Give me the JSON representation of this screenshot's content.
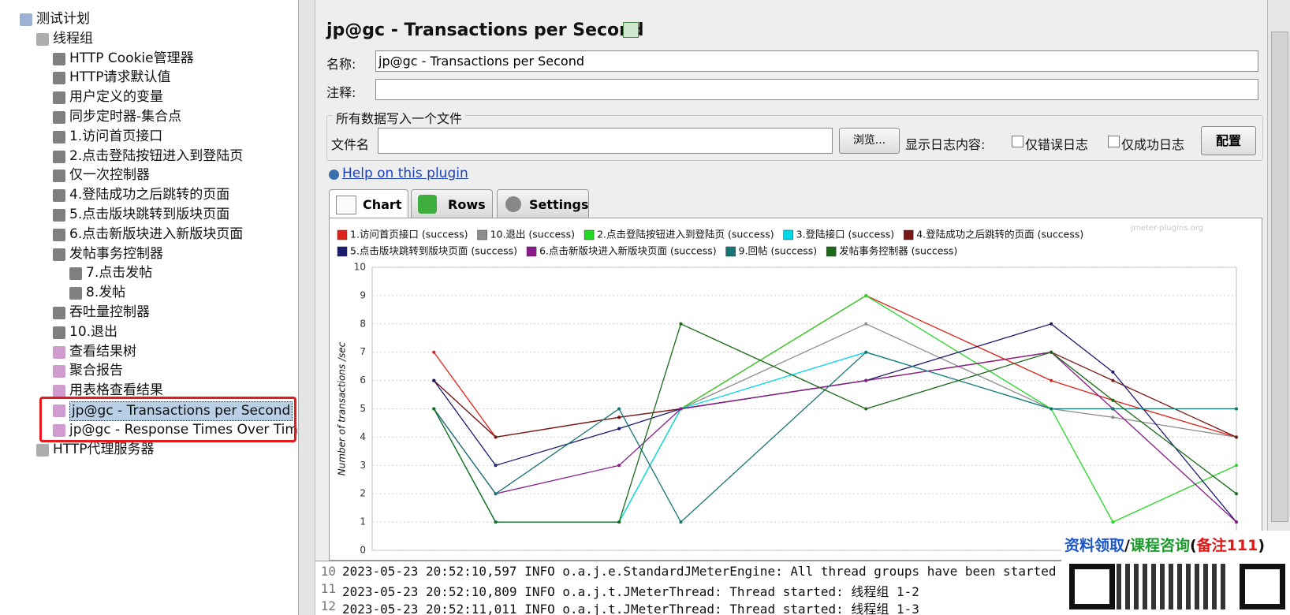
{
  "tree": {
    "label": "测试计划",
    "children": [
      {
        "label": "线程组",
        "children": [
          {
            "label": "HTTP Cookie管理器"
          },
          {
            "label": "HTTP请求默认值"
          },
          {
            "label": "用户定义的变量"
          },
          {
            "label": "同步定时器-集合点"
          },
          {
            "label": "1.访问首页接口"
          },
          {
            "label": "2.点击登陆按钮进入到登陆页"
          },
          {
            "label": "仅一次控制器"
          },
          {
            "label": "4.登陆成功之后跳转的页面"
          },
          {
            "label": "5.点击版块跳转到版块页面"
          },
          {
            "label": "6.点击新版块进入新版块页面"
          },
          {
            "label": "发帖事务控制器",
            "children": [
              {
                "label": "7.点击发帖"
              },
              {
                "label": "8.发帖"
              }
            ]
          },
          {
            "label": "吞吐量控制器"
          },
          {
            "label": "10.退出"
          },
          {
            "label": "查看结果树"
          },
          {
            "label": "聚合报告"
          },
          {
            "label": "用表格查看结果"
          },
          {
            "label": "jp@gc - Transactions per Second"
          },
          {
            "label": "jp@gc - Response Times Over Time"
          }
        ]
      },
      {
        "label": "HTTP代理服务器"
      }
    ]
  },
  "title": "jp@gc - Transactions per Second",
  "form": {
    "name_label": "名称:",
    "name_value": "jp@gc - Transactions per Second",
    "comment_label": "注释:",
    "file_group": "所有数据写入一个文件",
    "file_label": "文件名",
    "browse": "浏览...",
    "log_label": "显示日志内容:",
    "errors_only": "仅错误日志",
    "success_only": "仅成功日志",
    "configure": "配置"
  },
  "help": "Help on this plugin",
  "tabs": [
    "Chart",
    "Rows",
    "Settings"
  ],
  "chart_data": {
    "type": "line",
    "watermark": "jmeter-plugins.org",
    "y_label": "Number of transactions /sec",
    "x": [
      0,
      1,
      3,
      4,
      7,
      10,
      11,
      13
    ],
    "xlim": [
      -1,
      13
    ],
    "ylim": [
      0,
      10
    ],
    "yticks": [
      0,
      1,
      2,
      3,
      4,
      5,
      6,
      7,
      8,
      9,
      10
    ],
    "grid": true,
    "series": [
      {
        "name": "1.访问首页接口 (success)",
        "color": "#e0221a",
        "values": [
          7,
          4,
          4.7,
          5,
          9,
          6,
          5.3,
          4
        ]
      },
      {
        "name": "10.退出 (success)",
        "color": "#8c8c8c",
        "values": [
          6,
          4,
          4.7,
          5,
          8,
          5,
          4.7,
          4
        ]
      },
      {
        "name": "2.点击登陆按钮进入到登陆页 (success)",
        "color": "#22d822",
        "values": [
          5,
          1,
          1,
          5,
          9,
          5,
          1,
          3
        ]
      },
      {
        "name": "3.登陆接口 (success)",
        "color": "#00d8e8",
        "values": [
          5,
          1,
          1,
          5,
          7,
          5,
          5,
          5
        ]
      },
      {
        "name": "4.登陆成功之后跳转的页面 (success)",
        "color": "#7a1616",
        "values": [
          6,
          4,
          4.7,
          5,
          6,
          7,
          6,
          4
        ]
      },
      {
        "name": "5.点击版块跳转到版块页面 (success)",
        "color": "#1a1a6e",
        "values": [
          6,
          3,
          4.3,
          5,
          6,
          8,
          6.3,
          1
        ]
      },
      {
        "name": "6.点击新版块进入新版块页面 (success)",
        "color": "#8a1a8a",
        "values": [
          5,
          2,
          3,
          5,
          6,
          7,
          5,
          1
        ]
      },
      {
        "name": "9.回帖 (success)",
        "color": "#157575",
        "values": [
          5,
          2,
          5,
          1,
          7,
          5,
          5,
          5
        ]
      },
      {
        "name": "发帖事务控制器 (success)",
        "color": "#1a6a1a",
        "values": [
          5,
          1,
          1,
          8,
          5,
          7,
          5.3,
          2
        ]
      }
    ]
  },
  "log": [
    {
      "n": "10",
      "text": "2023-05-23 20:52:10,597 INFO o.a.j.e.StandardJMeterEngine: All thread groups have been started"
    },
    {
      "n": "11",
      "text": "2023-05-23 20:52:10,809 INFO o.a.j.t.JMeterThread: Thread started: 线程组 1-2"
    },
    {
      "n": "12",
      "text": "2023-05-23 20:52:11,011 INFO o.a.j.t.JMeterThread: Thread started: 线程组 1-3"
    }
  ],
  "promo": [
    "资料领取",
    "/",
    "课程咨询",
    "(",
    "备注111",
    ")"
  ]
}
